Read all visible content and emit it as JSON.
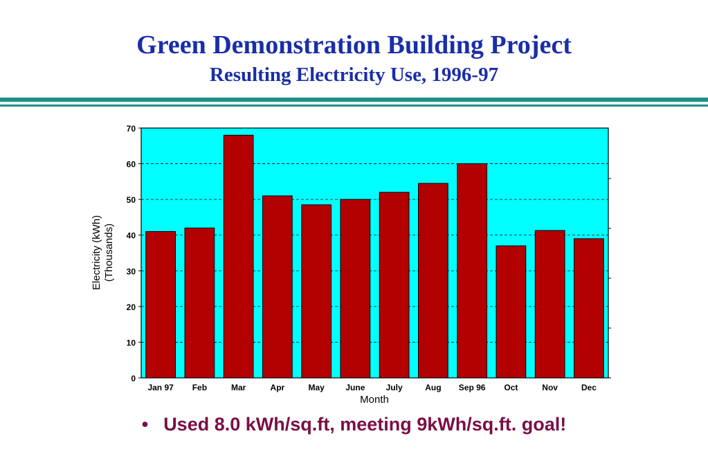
{
  "slide": {
    "title": "Green Demonstration Building Project",
    "subtitle": "Resulting Electricity Use, 1996-97",
    "bullet_text": "Used 8.0 kWh/sq.ft, meeting 9kWh/sq.ft. goal!",
    "colors": {
      "title": "#1a2ea8",
      "bullet": "#7a0e46",
      "rule": "#1e8f86",
      "plot_bg": "#00ffff",
      "bar": "#b30000"
    }
  },
  "chart_data": {
    "type": "bar",
    "title": "",
    "xlabel": "Month",
    "ylabel_line1": "Electricity (kWh)",
    "ylabel_line2": "(Thousands)",
    "categories": [
      "Jan 97",
      "Feb",
      "Mar",
      "Apr",
      "May",
      "June",
      "July",
      "Aug",
      "Sep 96",
      "Oct",
      "Nov",
      "Dec"
    ],
    "values": [
      41,
      42,
      68,
      51,
      48.5,
      50,
      52,
      54.5,
      60,
      37,
      41.3,
      39
    ],
    "ylim": [
      0,
      70
    ],
    "yticks": [
      "0",
      "10",
      "20",
      "30",
      "40",
      "50",
      "60",
      "70"
    ],
    "grid": true,
    "legend": "none"
  }
}
